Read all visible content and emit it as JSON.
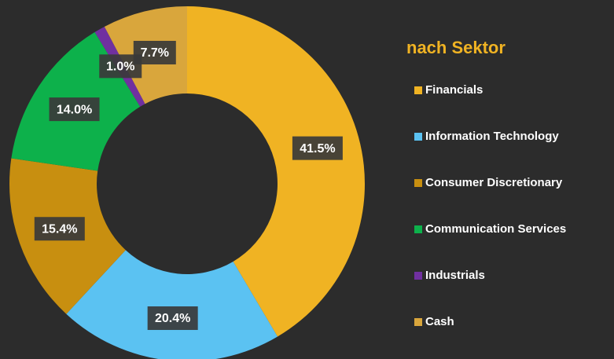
{
  "chart_data": {
    "type": "donut",
    "title": "nach Sektor",
    "categories": [
      "Financials",
      "Information Technology",
      "Consumer Discretionary",
      "Communication Services",
      "Industrials",
      "Cash"
    ],
    "values": [
      41.5,
      20.4,
      15.4,
      14.0,
      1.0,
      7.7
    ],
    "value_labels": [
      "41.5%",
      "20.4%",
      "15.4%",
      "14.0%",
      "1.0%",
      "7.7%"
    ],
    "colors": [
      "#f0b323",
      "#5bc2f2",
      "#c88f10",
      "#0db14b",
      "#7030a0",
      "#d9a63c"
    ]
  }
}
